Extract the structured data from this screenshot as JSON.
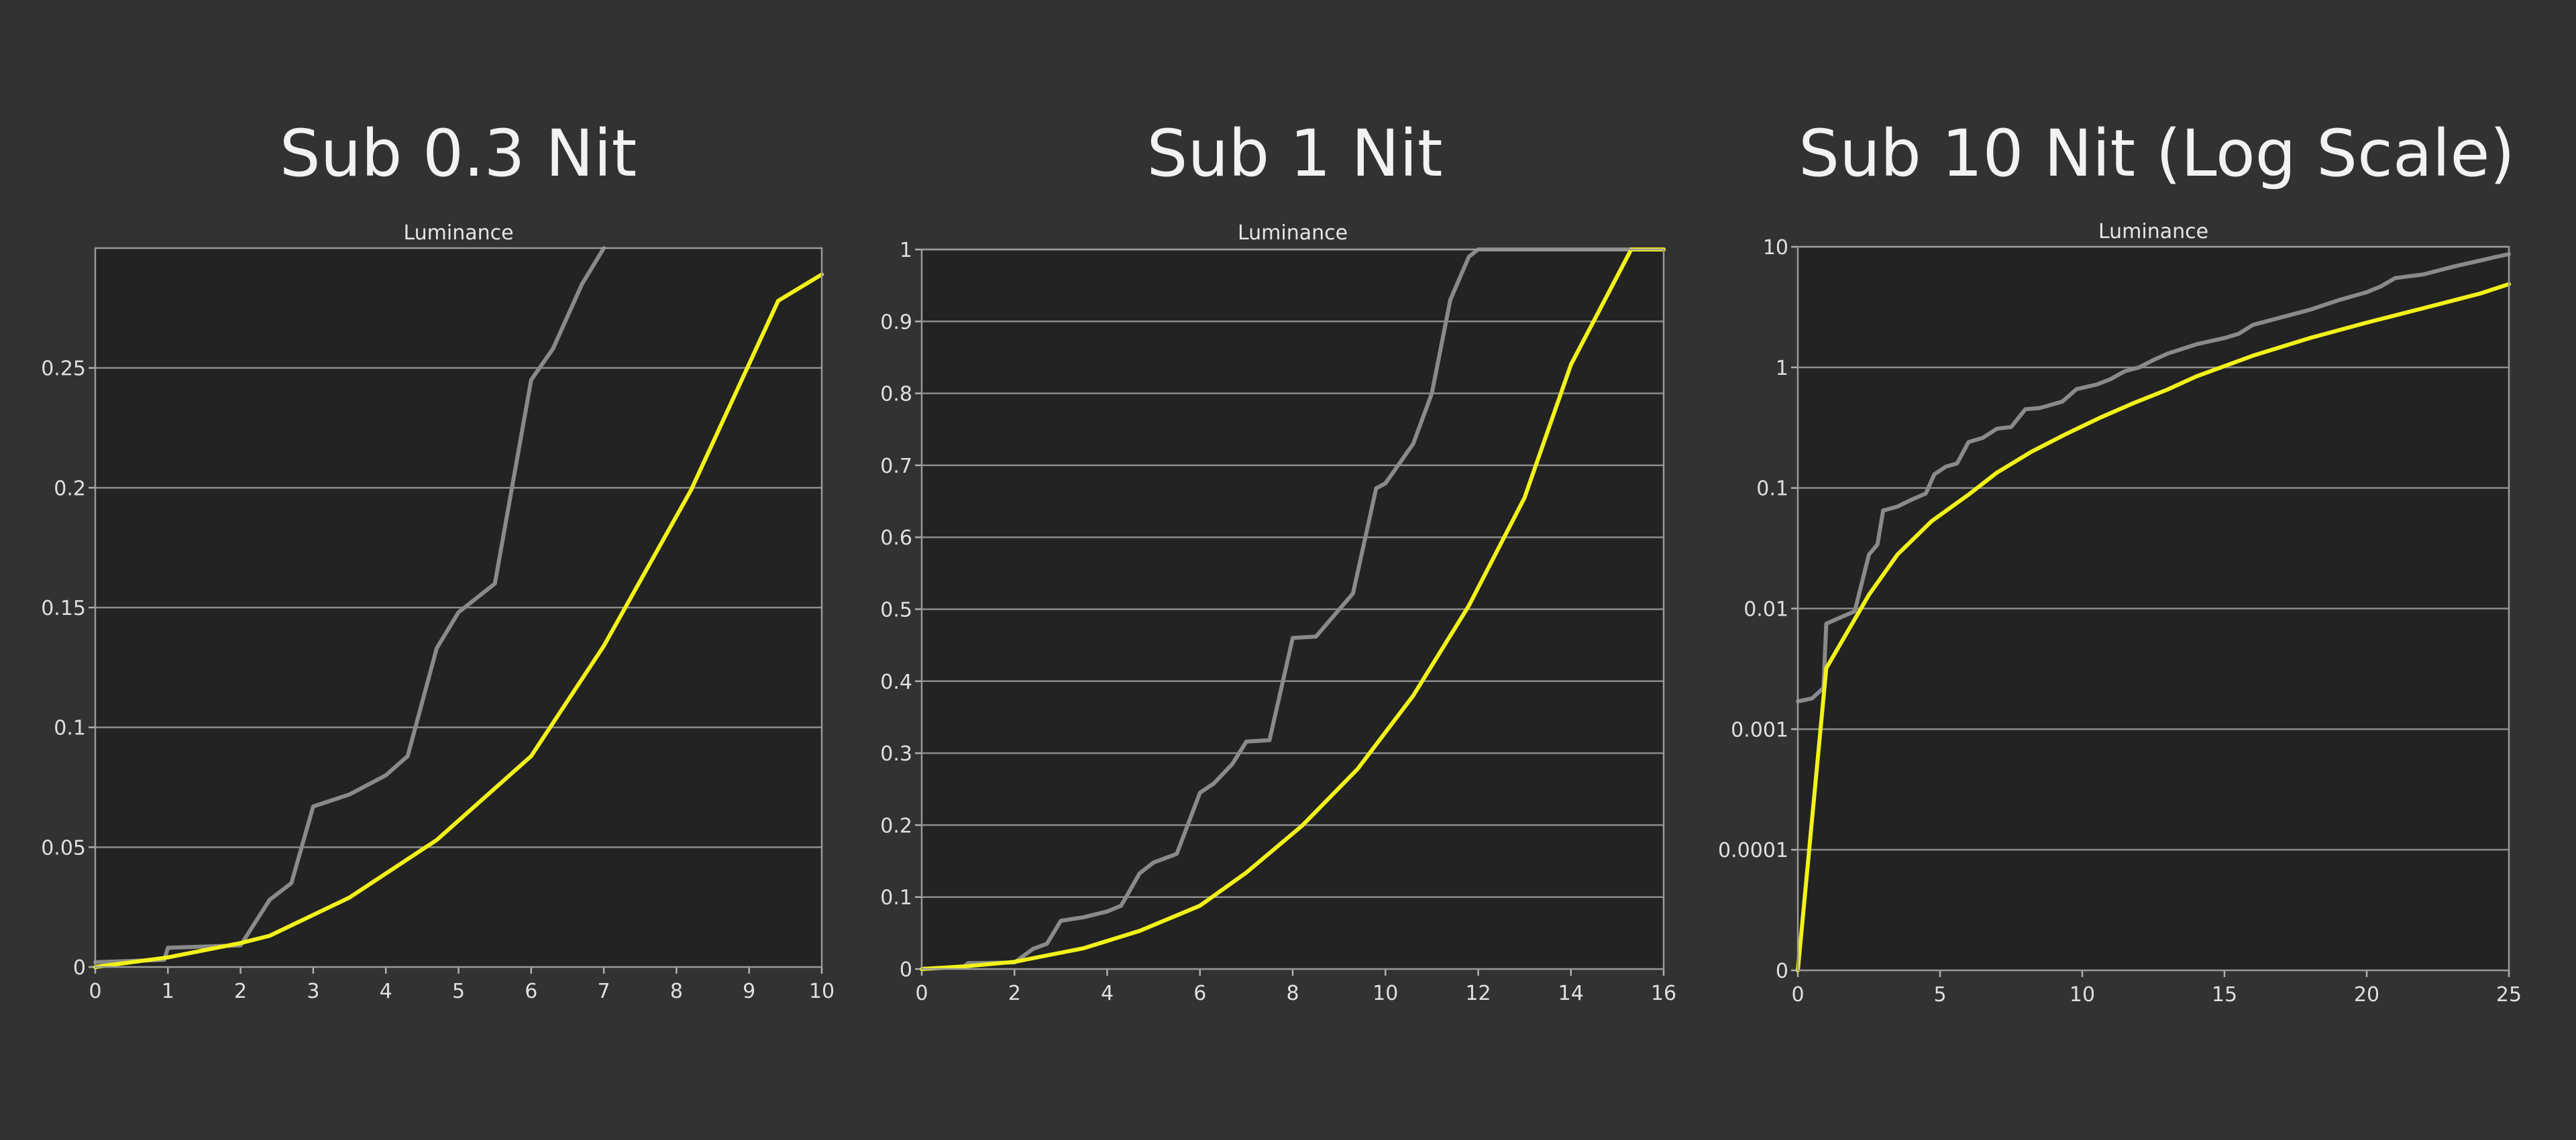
{
  "chart_data": [
    {
      "type": "line",
      "title": "Sub 0.3 Nit",
      "subtitle": "Luminance",
      "xlim": [
        0,
        10
      ],
      "ylim": [
        0,
        0.3
      ],
      "x_ticks": [
        "0",
        "1",
        "2",
        "3",
        "4",
        "5",
        "6",
        "7",
        "8",
        "9",
        "10"
      ],
      "y_ticks": [
        "0",
        "0.05",
        "0.1",
        "0.15",
        "0.2",
        "0.25"
      ],
      "grid": true,
      "legend": "none",
      "series": [
        {
          "color": "#8a8a8a",
          "points": [
            [
              0,
              0.002
            ],
            [
              0.95,
              0.003
            ],
            [
              1.0,
              0.008
            ],
            [
              2.0,
              0.009
            ],
            [
              2.4,
              0.028
            ],
            [
              2.7,
              0.035
            ],
            [
              3.0,
              0.067
            ],
            [
              3.5,
              0.072
            ],
            [
              4.0,
              0.08
            ],
            [
              4.3,
              0.088
            ],
            [
              4.7,
              0.133
            ],
            [
              5.0,
              0.148
            ],
            [
              5.5,
              0.16
            ],
            [
              6.0,
              0.245
            ],
            [
              6.3,
              0.258
            ],
            [
              6.7,
              0.285
            ],
            [
              7.0,
              0.3
            ]
          ]
        },
        {
          "color": "#f2f21a",
          "points": [
            [
              0,
              0.0
            ],
            [
              1.0,
              0.004
            ],
            [
              2.0,
              0.01
            ],
            [
              2.4,
              0.013
            ],
            [
              3.5,
              0.029
            ],
            [
              4.7,
              0.053
            ],
            [
              6.0,
              0.088
            ],
            [
              7.0,
              0.134
            ],
            [
              8.2,
              0.199
            ],
            [
              9.4,
              0.278
            ],
            [
              10.0,
              0.289
            ]
          ]
        }
      ]
    },
    {
      "type": "line",
      "title": "Sub 1 Nit",
      "subtitle": "Luminance",
      "xlim": [
        0,
        16
      ],
      "ylim": [
        0,
        1
      ],
      "x_ticks": [
        "0",
        "2",
        "4",
        "6",
        "8",
        "10",
        "12",
        "14",
        "16"
      ],
      "y_ticks": [
        "0",
        "0.1",
        "0.2",
        "0.3",
        "0.4",
        "0.5",
        "0.6",
        "0.7",
        "0.8",
        "0.9",
        "1"
      ],
      "grid": true,
      "legend": "none",
      "series": [
        {
          "color": "#8a8a8a",
          "points": [
            [
              0,
              0.0
            ],
            [
              0.9,
              0.003
            ],
            [
              1.0,
              0.008
            ],
            [
              2.0,
              0.009
            ],
            [
              2.4,
              0.028
            ],
            [
              2.7,
              0.035
            ],
            [
              3.0,
              0.067
            ],
            [
              3.5,
              0.072
            ],
            [
              4.0,
              0.08
            ],
            [
              4.3,
              0.088
            ],
            [
              4.7,
              0.133
            ],
            [
              5.0,
              0.148
            ],
            [
              5.5,
              0.16
            ],
            [
              6.0,
              0.245
            ],
            [
              6.3,
              0.258
            ],
            [
              6.7,
              0.285
            ],
            [
              7.0,
              0.316
            ],
            [
              7.5,
              0.318
            ],
            [
              8.0,
              0.46
            ],
            [
              8.5,
              0.462
            ],
            [
              9.3,
              0.522
            ],
            [
              9.8,
              0.668
            ],
            [
              10.0,
              0.675
            ],
            [
              10.6,
              0.73
            ],
            [
              11.0,
              0.8
            ],
            [
              11.4,
              0.93
            ],
            [
              11.8,
              0.99
            ],
            [
              12.0,
              1.0
            ],
            [
              16.0,
              1.0
            ]
          ]
        },
        {
          "color": "#f2f21a",
          "points": [
            [
              0,
              0.0
            ],
            [
              1.0,
              0.004
            ],
            [
              2.0,
              0.01
            ],
            [
              3.5,
              0.029
            ],
            [
              4.7,
              0.053
            ],
            [
              6.0,
              0.088
            ],
            [
              7.0,
              0.134
            ],
            [
              8.2,
              0.199
            ],
            [
              9.4,
              0.278
            ],
            [
              10.6,
              0.38
            ],
            [
              11.8,
              0.505
            ],
            [
              13.0,
              0.655
            ],
            [
              14.0,
              0.84
            ],
            [
              15.3,
              1.0
            ],
            [
              16.0,
              1.0
            ]
          ]
        }
      ]
    },
    {
      "type": "line",
      "title": "Sub 10 Nit (Log Scale)",
      "subtitle": "Luminance",
      "xlim": [
        0,
        25
      ],
      "ylim": [
        0,
        10
      ],
      "y_scale": "log",
      "x_ticks": [
        "0",
        "5",
        "10",
        "15",
        "20",
        "25"
      ],
      "y_ticks": [
        "0",
        "0.0001",
        "0.001",
        "0.01",
        "0.1",
        "1",
        "10"
      ],
      "grid": true,
      "legend": "none",
      "series": [
        {
          "color": "#8a8a8a",
          "points": [
            [
              0,
              0.0017
            ],
            [
              0.5,
              0.0018
            ],
            [
              0.9,
              0.0022
            ],
            [
              1.0,
              0.0075
            ],
            [
              2.0,
              0.0095
            ],
            [
              2.5,
              0.028
            ],
            [
              2.8,
              0.034
            ],
            [
              3.0,
              0.065
            ],
            [
              3.5,
              0.07
            ],
            [
              4.0,
              0.08
            ],
            [
              4.5,
              0.09
            ],
            [
              4.8,
              0.13
            ],
            [
              5.2,
              0.15
            ],
            [
              5.6,
              0.16
            ],
            [
              6.0,
              0.24
            ],
            [
              6.5,
              0.26
            ],
            [
              7.0,
              0.31
            ],
            [
              7.5,
              0.32
            ],
            [
              8.0,
              0.45
            ],
            [
              8.5,
              0.46
            ],
            [
              9.3,
              0.52
            ],
            [
              9.8,
              0.66
            ],
            [
              10.5,
              0.72
            ],
            [
              11.0,
              0.8
            ],
            [
              11.5,
              0.93
            ],
            [
              12.0,
              1.0
            ],
            [
              12.5,
              1.15
            ],
            [
              13.0,
              1.3
            ],
            [
              14.0,
              1.55
            ],
            [
              14.5,
              1.65
            ],
            [
              15.0,
              1.75
            ],
            [
              15.5,
              1.9
            ],
            [
              16.0,
              2.25
            ],
            [
              17.0,
              2.6
            ],
            [
              18.0,
              3.0
            ],
            [
              19.0,
              3.6
            ],
            [
              20.0,
              4.2
            ],
            [
              20.5,
              4.7
            ],
            [
              21.0,
              5.5
            ],
            [
              22.0,
              5.9
            ],
            [
              23.0,
              6.8
            ],
            [
              24.0,
              7.7
            ],
            [
              24.5,
              8.2
            ],
            [
              25.0,
              8.7
            ]
          ]
        },
        {
          "color": "#f2f21a",
          "points": [
            [
              0,
              0.0
            ],
            [
              1.0,
              0.0032
            ],
            [
              2.5,
              0.013
            ],
            [
              3.5,
              0.028
            ],
            [
              4.7,
              0.053
            ],
            [
              6.0,
              0.088
            ],
            [
              7.0,
              0.134
            ],
            [
              8.2,
              0.199
            ],
            [
              9.4,
              0.278
            ],
            [
              10.6,
              0.38
            ],
            [
              11.8,
              0.505
            ],
            [
              13.0,
              0.655
            ],
            [
              14.0,
              0.84
            ],
            [
              16.0,
              1.25
            ],
            [
              18.0,
              1.75
            ],
            [
              20.0,
              2.35
            ],
            [
              22.0,
              3.1
            ],
            [
              24.0,
              4.1
            ],
            [
              25.0,
              4.9
            ]
          ]
        }
      ]
    }
  ]
}
